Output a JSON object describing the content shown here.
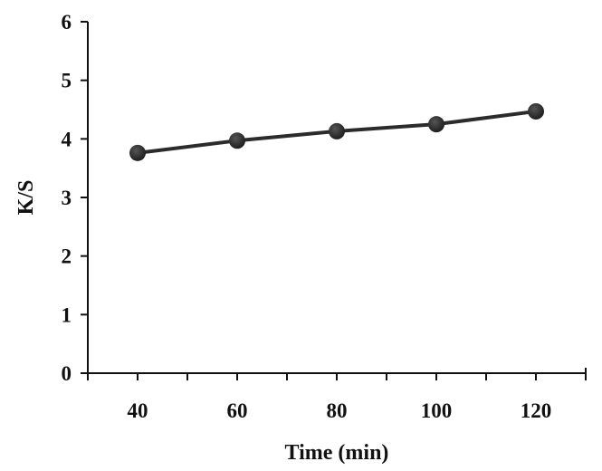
{
  "chart_data": {
    "type": "line",
    "title": "",
    "xlabel": "Time (min)",
    "ylabel": "K/S",
    "x": [
      40,
      60,
      80,
      100,
      120
    ],
    "series": [
      {
        "name": "K/S",
        "values": [
          3.76,
          3.97,
          4.13,
          4.25,
          4.47
        ],
        "color": "#2b2b2b",
        "marker": "circle"
      }
    ],
    "xlim": [
      30,
      130
    ],
    "ylim": [
      0,
      6
    ],
    "x_ticks": [
      40,
      60,
      80,
      100,
      120
    ],
    "x_minor_tick_step": 10,
    "y_ticks": [
      0,
      1,
      2,
      3,
      4,
      5,
      6
    ],
    "grid": false,
    "legend": null
  },
  "labels": {
    "x_axis_title": "Time (min)",
    "y_axis_title": "K/S"
  }
}
